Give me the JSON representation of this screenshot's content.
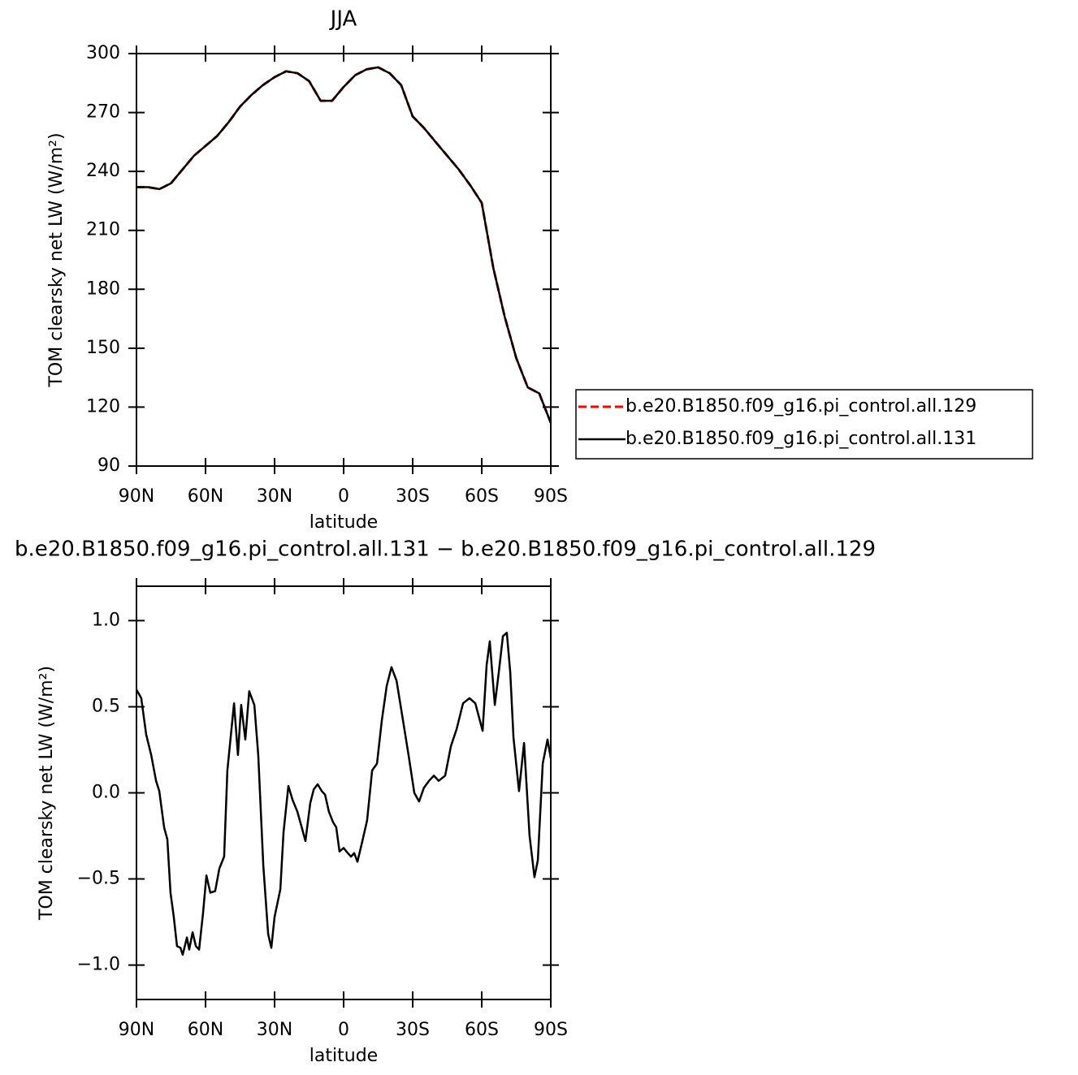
{
  "chart_data": [
    {
      "type": "line",
      "title": "JJA",
      "x_label": "latitude",
      "y_label": "TOM clearsky net LW (W/m²)",
      "x": [
        90,
        85,
        80,
        75,
        70,
        65,
        60,
        55,
        50,
        45,
        40,
        35,
        30,
        25,
        20,
        15,
        10,
        5,
        0,
        -5,
        -10,
        -15,
        -20,
        -25,
        -30,
        -35,
        -40,
        -45,
        -50,
        -55,
        -60,
        -65,
        -70,
        -75,
        -80,
        -85,
        -90
      ],
      "series": [
        {
          "name": "b.e20.B1850.f09_g16.pi_control.all.129",
          "color": "#ff0000",
          "dash": true,
          "values": [
            232,
            232,
            231,
            234,
            241,
            248,
            253,
            258,
            265,
            273,
            279,
            284,
            288,
            291,
            290,
            286,
            276,
            276,
            283,
            289,
            292,
            293,
            290,
            284,
            268,
            262,
            255,
            248,
            241,
            233,
            224,
            191,
            166,
            145,
            130,
            127,
            112
          ]
        },
        {
          "name": "b.e20.B1850.f09_g16.pi_control.all.131",
          "color": "#000000",
          "dash": false,
          "values": [
            232,
            232,
            231,
            234,
            241,
            248,
            253,
            258,
            265,
            273,
            279,
            284,
            288,
            291,
            290,
            286,
            276,
            276,
            283,
            289,
            292,
            293,
            290,
            284,
            268,
            262,
            255,
            248,
            241,
            233,
            224,
            191,
            166,
            145,
            130,
            127,
            112
          ]
        }
      ],
      "xlim": [
        90,
        -90
      ],
      "xticks": [
        {
          "value": 90,
          "label": "90N"
        },
        {
          "value": 60,
          "label": "60N"
        },
        {
          "value": 30,
          "label": "30N"
        },
        0,
        {
          "value": -30,
          "label": "30S"
        },
        {
          "value": -60,
          "label": "60S"
        },
        {
          "value": -90,
          "label": "90S"
        }
      ],
      "ylim": [
        90,
        300
      ],
      "yticks": [
        90,
        120,
        150,
        180,
        210,
        240,
        270,
        300
      ],
      "legend": "right"
    },
    {
      "type": "line",
      "title": "b.e20.B1850.f09_g16.pi_control.all.131 − b.e20.B1850.f09_g16.pi_control.all.129",
      "x_label": "latitude",
      "y_label": "TOM clearsky net LW (W/m²)",
      "x": [
        90,
        87.9,
        85.8,
        83.6,
        81.5,
        80.1,
        78,
        76.6,
        75.2,
        73.8,
        72.4,
        70.9,
        69.9,
        68.1,
        67.1,
        65.6,
        64.2,
        62.8,
        61.1,
        59.6,
        57.9,
        55.8,
        54,
        51.9,
        50.5,
        47.6,
        45.9,
        44.5,
        42.7,
        41,
        38.8,
        37.1,
        34.9,
        32.8,
        31.4,
        30,
        27.5,
        26.1,
        24,
        22.2,
        20.1,
        18,
        16.6,
        14.5,
        13,
        11.3,
        9.5,
        8.1,
        6.4,
        4.6,
        3.2,
        1.8,
        0,
        -1.8,
        -3.2,
        -4.6,
        -6,
        -7.8,
        -10.2,
        -12.4,
        -14.5,
        -16.6,
        -18.7,
        -20.8,
        -23,
        -25.8,
        -28.2,
        -30.7,
        -32.8,
        -34.9,
        -37.1,
        -39.2,
        -41.3,
        -44.1,
        -46.6,
        -49.1,
        -51.9,
        -54.7,
        -57.2,
        -60.4,
        -62.1,
        -63.5,
        -65.7,
        -67.4,
        -69.2,
        -70.9,
        -72.4,
        -73.8,
        -76.2,
        -78.4,
        -80.8,
        -82.9,
        -84.4,
        -86.5,
        -88.6,
        -90
      ],
      "series": [
        {
          "name": "b.e20.B1850.f09_g16.pi_control.all.131",
          "color": "#000000",
          "dash": false,
          "values": [
            0.6,
            0.55,
            0.34,
            0.22,
            0.07,
            0.01,
            -0.2,
            -0.27,
            -0.58,
            -0.72,
            -0.89,
            -0.9,
            -0.94,
            -0.84,
            -0.91,
            -0.81,
            -0.89,
            -0.91,
            -0.7,
            -0.48,
            -0.58,
            -0.57,
            -0.44,
            -0.37,
            0.13,
            0.52,
            0.22,
            0.51,
            0.31,
            0.59,
            0.51,
            0.22,
            -0.42,
            -0.82,
            -0.9,
            -0.72,
            -0.56,
            -0.23,
            0.04,
            -0.04,
            -0.11,
            -0.21,
            -0.28,
            -0.06,
            0.02,
            0.05,
            0.01,
            -0.01,
            -0.11,
            -0.17,
            -0.2,
            -0.34,
            -0.32,
            -0.35,
            -0.37,
            -0.35,
            -0.4,
            -0.3,
            -0.16,
            0.13,
            0.17,
            0.42,
            0.62,
            0.73,
            0.65,
            0.42,
            0.22,
            0.0,
            -0.05,
            0.03,
            0.07,
            0.1,
            0.07,
            0.1,
            0.27,
            0.37,
            0.52,
            0.55,
            0.52,
            0.36,
            0.74,
            0.88,
            0.51,
            0.7,
            0.91,
            0.93,
            0.7,
            0.32,
            0.01,
            0.29,
            -0.25,
            -0.49,
            -0.39,
            0.17,
            0.31,
            0.2
          ]
        }
      ],
      "xlim": [
        90,
        -90
      ],
      "xticks": [
        {
          "value": 90,
          "label": "90N"
        },
        {
          "value": 60,
          "label": "60N"
        },
        {
          "value": 30,
          "label": "30N"
        },
        0,
        {
          "value": -30,
          "label": "30S"
        },
        {
          "value": -60,
          "label": "60S"
        },
        {
          "value": -90,
          "label": "90S"
        }
      ],
      "ylim": [
        -1.2,
        1.2
      ],
      "yticks": [
        {
          "value": -1,
          "label": "−1.0"
        },
        {
          "value": -0.5,
          "label": "−0.5"
        },
        {
          "value": 0,
          "label": "0.0"
        },
        {
          "value": 0.5,
          "label": "0.5"
        },
        {
          "value": 1,
          "label": "1.0"
        }
      ]
    }
  ]
}
